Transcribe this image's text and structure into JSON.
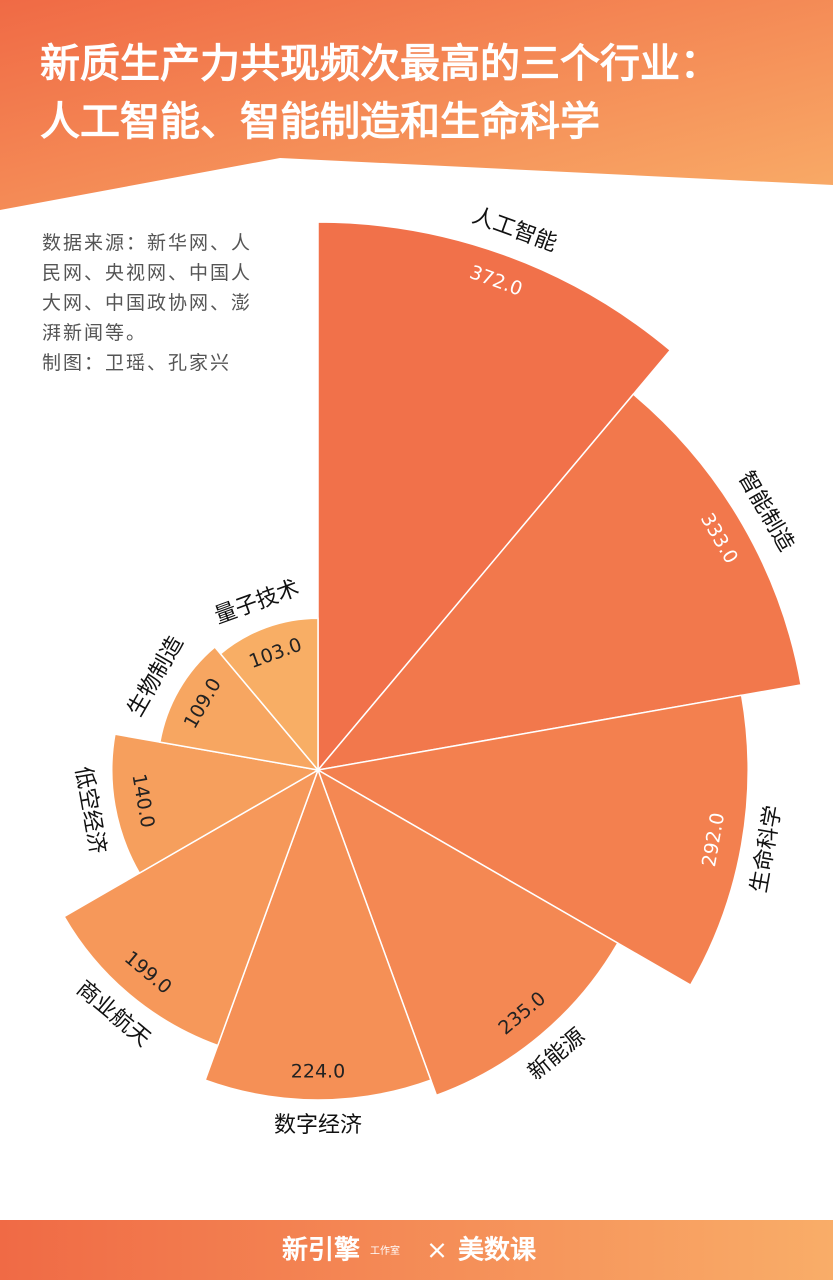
{
  "header": {
    "title_line1": "新质生产力共现频次最高的三个行业：",
    "title_line2": "人工智能、智能制造和生命科学"
  },
  "notes": {
    "source": "数据来源：新华网、人民网、央视网、中国人大网、中国政协网、澎湃新闻等。",
    "credit": "制图：卫瑶、孔家兴"
  },
  "chart_data": {
    "type": "rose",
    "categories": [
      "人工智能",
      "智能制造",
      "生命科学",
      "新能源",
      "数字经济",
      "商业航天",
      "低空经济",
      "生物制造",
      "量子技术"
    ],
    "values": [
      372,
      333,
      292,
      235,
      224,
      199,
      140,
      109,
      103
    ],
    "value_labels": [
      "372.0",
      "333.0",
      "292.0",
      "235.0",
      "224.0",
      "199.0",
      "140.0",
      "109.0",
      "103.0"
    ],
    "colors": [
      "#f1714a",
      "#f2784c",
      "#f3804f",
      "#f48853",
      "#f59056",
      "#f6985a",
      "#f69f5d",
      "#f7a661",
      "#f8ae65"
    ]
  },
  "footer": {
    "brand1": "新引擎",
    "brand1_sub": "工作室",
    "separator": "×",
    "brand2": "美数课"
  }
}
